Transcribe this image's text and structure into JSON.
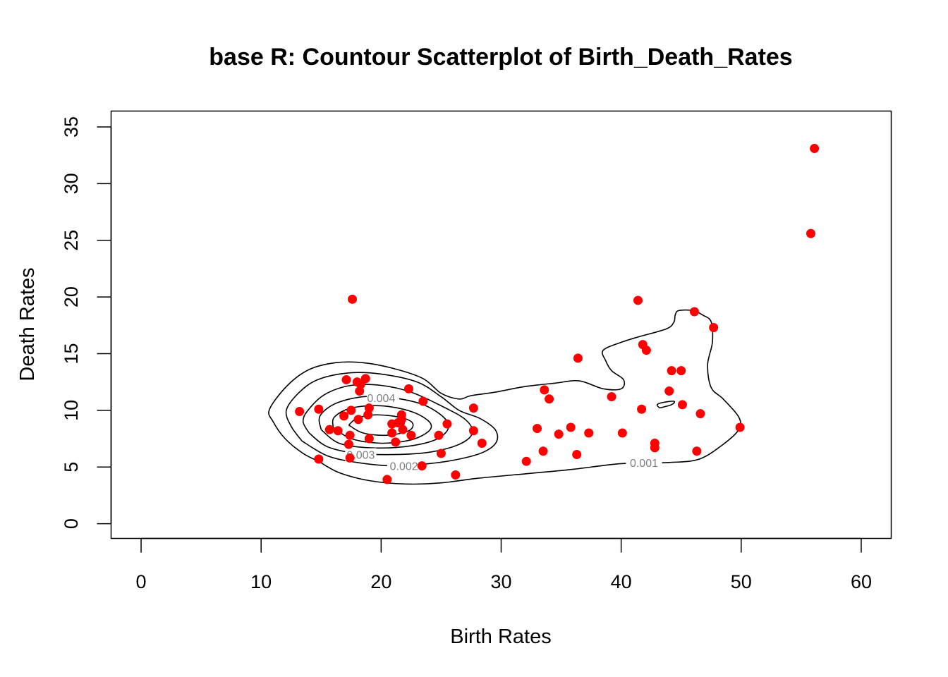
{
  "chart_data": {
    "type": "scatter",
    "title": "base R: Countour Scatterplot of Birth_Death_Rates",
    "xlabel": "Birth Rates",
    "ylabel": "Death Rates",
    "xlim": [
      -2.5,
      62.5
    ],
    "ylim": [
      -1.3,
      36.4
    ],
    "xticks": [
      0,
      10,
      20,
      30,
      40,
      50,
      60
    ],
    "yticks": [
      0,
      5,
      10,
      15,
      20,
      25,
      30,
      35
    ],
    "point_color": "#ff0000",
    "contour_color": "#000000",
    "contour_label_color": "#808080",
    "series": [
      {
        "values": [
          [
            13.2,
            9.9
          ],
          [
            14.8,
            10.1
          ],
          [
            14.8,
            5.7
          ],
          [
            15.7,
            8.3
          ],
          [
            16.4,
            8.2
          ],
          [
            16.9,
            9.5
          ],
          [
            17.1,
            12.7
          ],
          [
            17.3,
            7.0
          ],
          [
            17.4,
            7.8
          ],
          [
            17.4,
            5.8
          ],
          [
            17.5,
            10.0
          ],
          [
            17.6,
            19.8
          ],
          [
            18.0,
            12.5
          ],
          [
            18.1,
            9.2
          ],
          [
            18.2,
            11.7
          ],
          [
            18.3,
            12.3
          ],
          [
            18.7,
            12.8
          ],
          [
            18.9,
            9.6
          ],
          [
            19.0,
            10.2
          ],
          [
            19.0,
            7.5
          ],
          [
            20.5,
            3.9
          ],
          [
            20.9,
            8.8
          ],
          [
            20.9,
            8.0
          ],
          [
            21.2,
            7.2
          ],
          [
            21.4,
            8.9
          ],
          [
            21.6,
            8.9
          ],
          [
            21.7,
            9.2
          ],
          [
            21.7,
            9.6
          ],
          [
            21.8,
            8.3
          ],
          [
            22.3,
            11.9
          ],
          [
            22.5,
            7.8
          ],
          [
            23.4,
            5.1
          ],
          [
            23.5,
            10.8
          ],
          [
            24.8,
            7.8
          ],
          [
            25.0,
            6.2
          ],
          [
            25.5,
            8.8
          ],
          [
            26.2,
            4.3
          ],
          [
            27.7,
            10.2
          ],
          [
            27.7,
            8.2
          ],
          [
            28.4,
            7.1
          ],
          [
            32.1,
            5.5
          ],
          [
            33.0,
            8.4
          ],
          [
            33.5,
            6.4
          ],
          [
            33.6,
            11.8
          ],
          [
            34.0,
            11.0
          ],
          [
            34.8,
            7.9
          ],
          [
            35.8,
            8.5
          ],
          [
            36.3,
            6.1
          ],
          [
            36.4,
            14.6
          ],
          [
            37.3,
            8.0
          ],
          [
            39.2,
            11.2
          ],
          [
            40.1,
            8.0
          ],
          [
            41.4,
            19.7
          ],
          [
            41.7,
            10.1
          ],
          [
            41.8,
            15.8
          ],
          [
            42.1,
            15.3
          ],
          [
            42.8,
            6.7
          ],
          [
            42.8,
            7.1
          ],
          [
            44.0,
            11.7
          ],
          [
            44.2,
            13.5
          ],
          [
            45.0,
            13.5
          ],
          [
            45.1,
            10.5
          ],
          [
            46.1,
            18.7
          ],
          [
            46.3,
            6.4
          ],
          [
            46.6,
            9.7
          ],
          [
            47.7,
            17.3
          ],
          [
            49.9,
            8.5
          ],
          [
            55.8,
            25.6
          ],
          [
            56.1,
            33.1
          ]
        ]
      }
    ],
    "contours": [
      {
        "level": "0.001",
        "path": [
          [
            14.8,
            5.5
          ],
          [
            16.5,
            4.5
          ],
          [
            19.0,
            3.8
          ],
          [
            22.0,
            3.5
          ],
          [
            25.0,
            3.6
          ],
          [
            28.0,
            4.0
          ],
          [
            32.0,
            4.4
          ],
          [
            36.0,
            4.8
          ],
          [
            40.0,
            5.3
          ],
          [
            44.0,
            5.4
          ],
          [
            46.5,
            5.7
          ],
          [
            48.5,
            7.0
          ],
          [
            49.8,
            8.3
          ],
          [
            49.8,
            9.4
          ],
          [
            48.5,
            11.0
          ],
          [
            47.5,
            12.0
          ],
          [
            47.2,
            14.0
          ],
          [
            47.6,
            16.0
          ],
          [
            47.5,
            17.8
          ],
          [
            46.8,
            18.4
          ],
          [
            46.0,
            18.8
          ],
          [
            44.8,
            18.8
          ],
          [
            44.5,
            18.4
          ],
          [
            44.4,
            17.8
          ],
          [
            43.8,
            17.2
          ],
          [
            41.5,
            16.5
          ],
          [
            40.0,
            16.0
          ],
          [
            38.5,
            15.3
          ],
          [
            38.7,
            14.4
          ],
          [
            39.2,
            13.5
          ],
          [
            40.2,
            12.7
          ],
          [
            40.0,
            11.9
          ],
          [
            38.5,
            11.9
          ],
          [
            36.5,
            12.6
          ],
          [
            34.5,
            12.4
          ],
          [
            32.0,
            12.1
          ],
          [
            29.5,
            11.6
          ],
          [
            27.5,
            11.3
          ],
          [
            26.5,
            11.0
          ],
          [
            25.0,
            11.5
          ],
          [
            23.5,
            12.8
          ],
          [
            21.0,
            13.7
          ],
          [
            18.5,
            14.2
          ],
          [
            16.2,
            14.2
          ],
          [
            14.0,
            13.6
          ],
          [
            12.2,
            12.2
          ],
          [
            10.7,
            10.1
          ],
          [
            11.0,
            9.0
          ],
          [
            12.0,
            7.5
          ],
          [
            13.5,
            6.2
          ],
          [
            14.8,
            5.5
          ]
        ],
        "label_at": [
          41.9,
          5.4
        ],
        "label_gap": [
          40.4,
          43.4
        ]
      },
      {
        "level": "0.002",
        "path": [
          [
            13.4,
            7.3
          ],
          [
            15.5,
            6.0
          ],
          [
            18.0,
            5.4
          ],
          [
            21.0,
            5.1
          ],
          [
            24.0,
            5.3
          ],
          [
            26.5,
            5.7
          ],
          [
            28.5,
            6.3
          ],
          [
            29.6,
            7.2
          ],
          [
            29.5,
            8.3
          ],
          [
            28.2,
            9.3
          ],
          [
            26.5,
            10.0
          ],
          [
            25.0,
            11.2
          ],
          [
            23.0,
            12.5
          ],
          [
            20.0,
            13.2
          ],
          [
            17.3,
            13.3
          ],
          [
            14.7,
            12.7
          ],
          [
            13.1,
            11.5
          ],
          [
            12.1,
            10.0
          ],
          [
            12.5,
            8.6
          ],
          [
            13.4,
            7.3
          ]
        ],
        "label_at": [
          21.9,
          5.1
        ],
        "label_gap": [
          20.5,
          23.3
        ]
      },
      {
        "level": "0.003",
        "path": [
          [
            14.0,
            8.0
          ],
          [
            15.5,
            6.8
          ],
          [
            18.0,
            6.2
          ],
          [
            21.0,
            6.1
          ],
          [
            24.0,
            6.3
          ],
          [
            26.5,
            7.0
          ],
          [
            27.6,
            8.0
          ],
          [
            27.0,
            9.2
          ],
          [
            25.0,
            10.4
          ],
          [
            22.5,
            11.6
          ],
          [
            20.0,
            12.2
          ],
          [
            17.5,
            12.2
          ],
          [
            15.3,
            11.4
          ],
          [
            13.9,
            10.0
          ],
          [
            13.5,
            9.0
          ],
          [
            14.0,
            8.0
          ]
        ],
        "label_at": [
          18.3,
          6.1
        ],
        "label_gap": [
          17.0,
          19.6
        ]
      },
      {
        "level": "0.004",
        "path": [
          [
            15.0,
            8.3
          ],
          [
            16.5,
            7.1
          ],
          [
            19.0,
            6.7
          ],
          [
            22.0,
            6.8
          ],
          [
            24.5,
            7.4
          ],
          [
            25.6,
            8.4
          ],
          [
            25.2,
            9.4
          ],
          [
            23.5,
            10.5
          ],
          [
            21.0,
            11.1
          ],
          [
            18.5,
            11.2
          ],
          [
            16.2,
            10.6
          ],
          [
            14.9,
            9.5
          ],
          [
            15.0,
            8.3
          ]
        ],
        "label_at": [
          20.0,
          11.1
        ],
        "label_gap": [
          18.8,
          21.5
        ]
      },
      {
        "path": [
          [
            16.0,
            8.5
          ],
          [
            17.5,
            7.5
          ],
          [
            20.0,
            7.1
          ],
          [
            22.5,
            7.4
          ],
          [
            24.0,
            8.2
          ],
          [
            24.0,
            9.0
          ],
          [
            22.5,
            9.9
          ],
          [
            20.0,
            10.4
          ],
          [
            17.5,
            10.2
          ],
          [
            16.1,
            9.4
          ],
          [
            16.0,
            8.5
          ]
        ]
      },
      {
        "path": [
          [
            17.3,
            8.7
          ],
          [
            18.5,
            8.0
          ],
          [
            20.5,
            7.8
          ],
          [
            22.3,
            8.2
          ],
          [
            22.6,
            8.9
          ],
          [
            21.5,
            9.4
          ],
          [
            19.5,
            9.6
          ],
          [
            18.0,
            9.3
          ],
          [
            17.3,
            8.7
          ]
        ]
      },
      {
        "path": [
          [
            43.2,
            10.2
          ],
          [
            44.2,
            10.5
          ],
          [
            44.4,
            10.8
          ],
          [
            43.5,
            10.7
          ],
          [
            43.0,
            10.5
          ],
          [
            43.2,
            10.2
          ]
        ]
      }
    ]
  }
}
